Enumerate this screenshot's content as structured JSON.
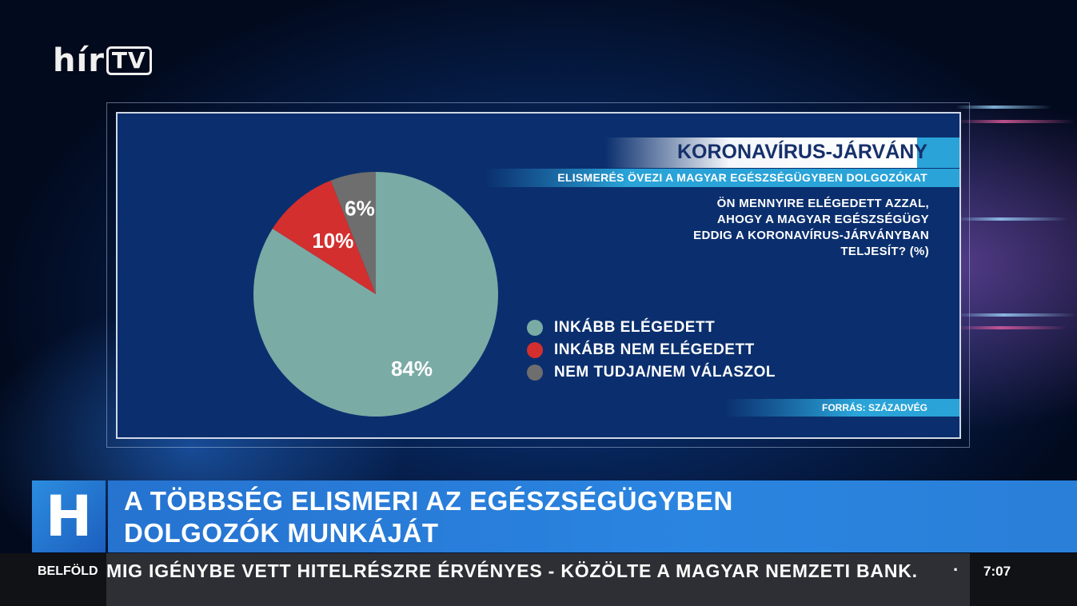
{
  "channel": {
    "logo_text": "hír",
    "logo_tv": "TV"
  },
  "chart_data": {
    "type": "pie",
    "title": "KORONAVÍRUS-JÁRVÁNY",
    "subtitle": "ELISMERÉS ÖVEZI A MAGYAR EGÉSZSÉGÜGYBEN DOLGOZÓKAT",
    "question": "ÖN MENNYIRE ELÉGEDETT AZZAL, AHOGY A MAGYAR EGÉSZSÉGÜGY EDDIG A KORONAVÍRUS-JÁRVÁNYBAN TELJESÍT? (%)",
    "source": "FORRÁS: SZÁZADVÉG",
    "slices": [
      {
        "label": "INKÁBB ELÉGEDETT",
        "value": 84,
        "display": "84%",
        "color": "#7aaba5"
      },
      {
        "label": "INKÁBB NEM ELÉGEDETT",
        "value": 10,
        "display": "10%",
        "color": "#d32f2f"
      },
      {
        "label": "NEM TUDJA/NEM VÁLASZOL",
        "value": 6,
        "display": "6%",
        "color": "#6e6e6e"
      }
    ],
    "legend_position": "right"
  },
  "lower_third": {
    "line1": "A TÖBBSÉG ELISMERI AZ EGÉSZSÉGÜGYBEN",
    "line2": "DOLGOZÓK MUNKÁJÁT",
    "badge": "H"
  },
  "ticker": {
    "category": "BELFÖLD",
    "message": "MIG IGÉNYBE VETT HITELRÉSZRE ÉRVÉNYES - KÖZÖLTE A MAGYAR NEMZETI BANK.",
    "separator": "·",
    "time": "7:07"
  }
}
